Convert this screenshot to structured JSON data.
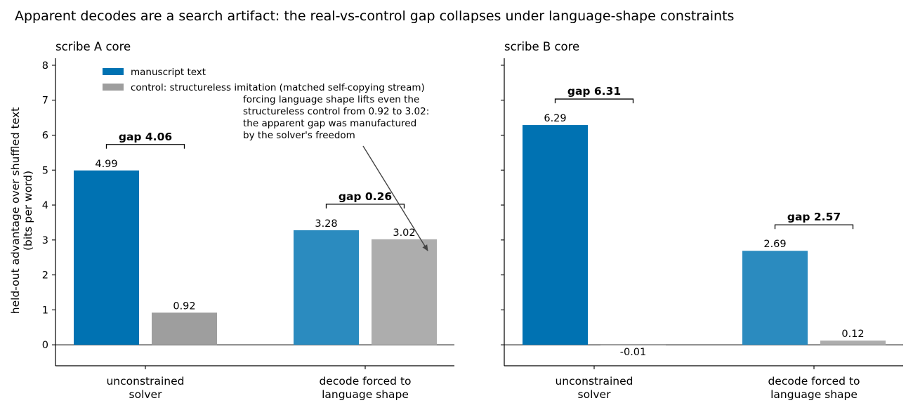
{
  "suptitle": "Apparent decodes are a search artifact: the real-vs-control gap collapses under language-shape constraints",
  "ylabel_line1": "held-out advantage over shuffled text",
  "ylabel_line2": "(bits per word)",
  "legend": {
    "real": "manuscript text",
    "control": "control: structureless imitation (matched self-copying stream)"
  },
  "annotation": {
    "lines": [
      "forcing language shape lifts even the",
      "structureless control from 0.92 to 3.02:",
      "the apparent gap was manufactured",
      "by the solver's freedom"
    ]
  },
  "chart_data": [
    {
      "type": "bar",
      "title": "scribe A core",
      "categories": [
        [
          "unconstrained",
          "solver"
        ],
        [
          "decode forced to",
          "language shape"
        ]
      ],
      "series": [
        {
          "name": "manuscript text",
          "values": [
            4.99,
            3.28
          ],
          "colors": [
            "#0072b2",
            "#2b8bbf"
          ]
        },
        {
          "name": "control: structureless imitation (matched self-copying stream)",
          "values": [
            0.92,
            3.02
          ],
          "colors": [
            "#9e9e9e",
            "#adadad"
          ]
        }
      ],
      "value_labels": [
        [
          "4.99",
          "0.92"
        ],
        [
          "3.28",
          "3.02"
        ]
      ],
      "gaps": [
        "gap 4.06",
        "gap 0.26"
      ],
      "ylim": [
        -0.6,
        8.2
      ],
      "yticks": [
        0,
        1,
        2,
        3,
        4,
        5,
        6,
        7,
        8
      ]
    },
    {
      "type": "bar",
      "title": "scribe B core",
      "categories": [
        [
          "unconstrained",
          "solver"
        ],
        [
          "decode forced to",
          "language shape"
        ]
      ],
      "series": [
        {
          "name": "manuscript text",
          "values": [
            6.29,
            2.69
          ],
          "colors": [
            "#0072b2",
            "#2b8bbf"
          ]
        },
        {
          "name": "control: structureless imitation (matched self-copying stream)",
          "values": [
            -0.01,
            0.12
          ],
          "colors": [
            "#9e9e9e",
            "#adadad"
          ]
        }
      ],
      "value_labels": [
        [
          "6.29",
          "-0.01"
        ],
        [
          "2.69",
          "0.12"
        ]
      ],
      "gaps": [
        "gap 6.31",
        "gap 2.57"
      ],
      "ylim": [
        -0.6,
        8.2
      ],
      "yticks": [
        0,
        1,
        2,
        3,
        4,
        5,
        6,
        7,
        8
      ]
    }
  ]
}
